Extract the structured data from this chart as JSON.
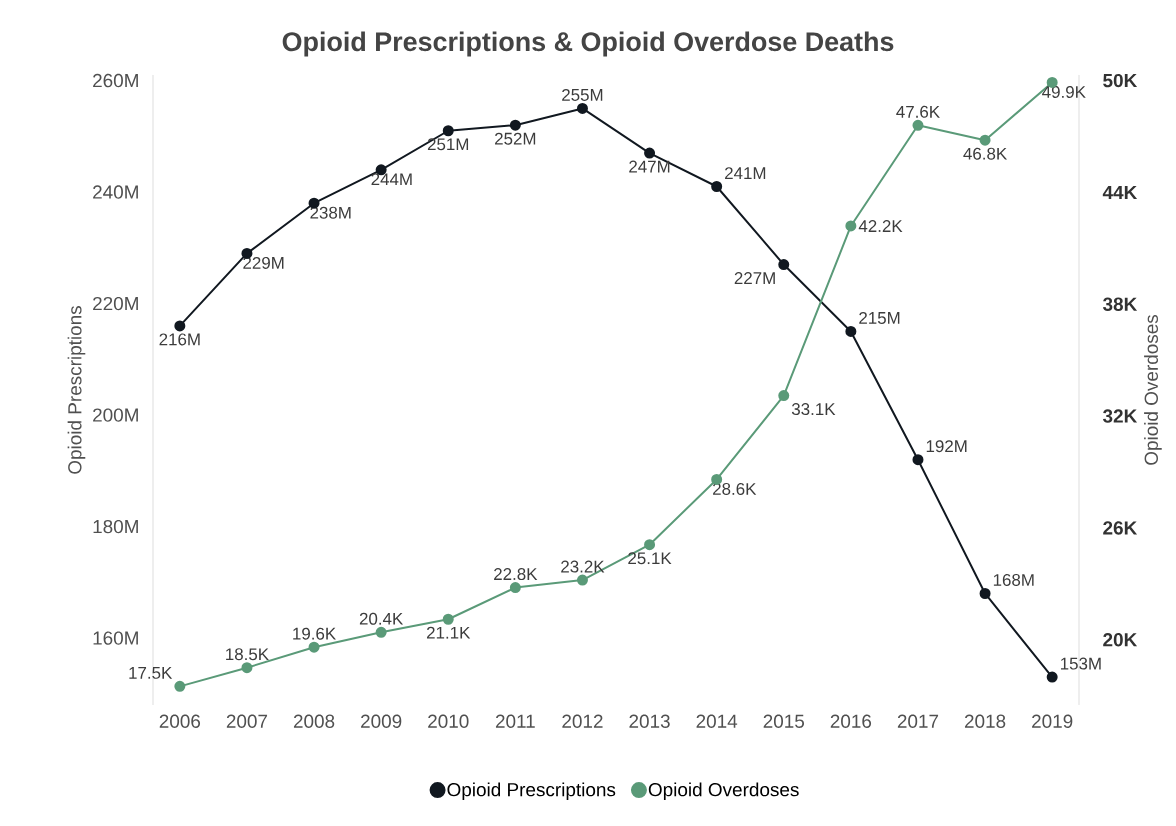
{
  "chart_data": {
    "type": "line",
    "title": "Opioid Prescriptions & Opioid Overdose Deaths",
    "categories": [
      "2006",
      "2007",
      "2008",
      "2009",
      "2010",
      "2011",
      "2012",
      "2013",
      "2014",
      "2015",
      "2016",
      "2017",
      "2018",
      "2019"
    ],
    "ylabel": "Opioid Prescriptions",
    "y2label": "Opioid Overdoses",
    "ylim": [
      148,
      261
    ],
    "y2lim": [
      16.5,
      50.3
    ],
    "yticks": [
      {
        "value": 160,
        "label": "160M"
      },
      {
        "value": 180,
        "label": "180M"
      },
      {
        "value": 200,
        "label": "200M"
      },
      {
        "value": 220,
        "label": "220M"
      },
      {
        "value": 240,
        "label": "240M"
      },
      {
        "value": 260,
        "label": "260M"
      }
    ],
    "y2ticks": [
      {
        "value": 20,
        "label": "20K"
      },
      {
        "value": 26,
        "label": "26K"
      },
      {
        "value": 32,
        "label": "32K"
      },
      {
        "value": 38,
        "label": "38K"
      },
      {
        "value": 44,
        "label": "44K"
      },
      {
        "value": 50,
        "label": "50K"
      }
    ],
    "marker": "circle",
    "line_style": "solid",
    "legend": "bottom",
    "series": [
      {
        "name": "Opioid Prescriptions",
        "color": "#111820",
        "values": [
          216,
          229,
          238,
          244,
          251,
          252,
          255,
          247,
          241,
          227,
          215,
          192,
          168,
          153
        ],
        "value_labels": [
          "216M",
          "229M",
          "238M",
          "244M",
          "251M",
          "252M",
          "255M",
          "247M",
          "241M",
          "227M",
          "215M",
          "192M",
          "168M",
          "153M"
        ]
      },
      {
        "name": "Opioid Overdoses",
        "color": "#5a9a78",
        "axis": "y2",
        "values": [
          17.5,
          18.5,
          19.6,
          20.4,
          21.1,
          22.8,
          23.2,
          25.1,
          28.6,
          33.1,
          42.2,
          47.6,
          46.8,
          49.9
        ],
        "value_labels": [
          "17.5K",
          "18.5K",
          "19.6K",
          "20.4K",
          "21.1K",
          "22.8K",
          "23.2K",
          "25.1K",
          "28.6K",
          "33.1K",
          "42.2K",
          "47.6K",
          "46.8K",
          "49.9K"
        ]
      }
    ]
  }
}
